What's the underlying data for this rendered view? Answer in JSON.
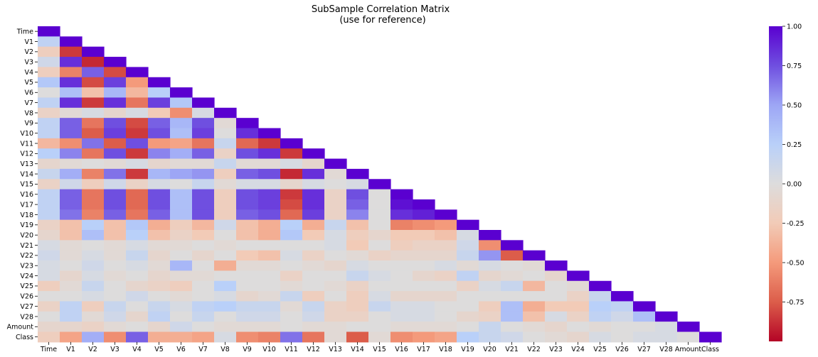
{
  "chart_data": {
    "type": "heatmap",
    "title": "SubSample Correlation Matrix",
    "subtitle": "(use for reference)",
    "variables": [
      "Time",
      "V1",
      "V2",
      "V3",
      "V4",
      "V5",
      "V6",
      "V7",
      "V8",
      "V9",
      "V10",
      "V11",
      "V12",
      "V13",
      "V14",
      "V15",
      "V16",
      "V17",
      "V18",
      "V19",
      "V20",
      "V21",
      "V22",
      "V23",
      "V24",
      "V25",
      "V26",
      "V27",
      "V28",
      "Amount",
      "Class"
    ],
    "mask": "upper-triangle",
    "colormap": "coolwarm_r",
    "colorbar": {
      "min": -1.0,
      "max": 1.0,
      "ticks": [
        "-0.75",
        "-0.50",
        "-0.25",
        "0.00",
        "0.25",
        "0.50",
        "0.75",
        "1.00"
      ]
    },
    "matrix_lower": [
      [
        1
      ],
      [
        0.2,
        1
      ],
      [
        -0.2,
        -0.85,
        1
      ],
      [
        0.1,
        0.85,
        -0.9,
        1
      ],
      [
        -0.2,
        -0.6,
        0.7,
        -0.8,
        1
      ],
      [
        0.3,
        0.85,
        -0.8,
        0.8,
        -0.5,
        1
      ],
      [
        0.0,
        0.35,
        -0.3,
        0.4,
        -0.35,
        0.25,
        1
      ],
      [
        0.2,
        0.85,
        -0.85,
        0.85,
        -0.65,
        0.8,
        0.3,
        1
      ],
      [
        -0.15,
        -0.05,
        0.05,
        -0.1,
        0.05,
        -0.25,
        -0.55,
        0.05,
        1
      ],
      [
        0.2,
        0.7,
        -0.65,
        0.75,
        -0.8,
        0.7,
        0.4,
        0.75,
        -0.05,
        1
      ],
      [
        0.2,
        0.7,
        -0.75,
        0.8,
        -0.85,
        0.75,
        0.35,
        0.8,
        0.0,
        0.85,
        1
      ],
      [
        -0.35,
        -0.55,
        0.65,
        -0.75,
        0.75,
        -0.5,
        -0.45,
        -0.65,
        0.15,
        -0.7,
        -0.85,
        1
      ],
      [
        0.25,
        0.6,
        -0.65,
        0.75,
        -0.85,
        0.6,
        0.45,
        0.7,
        -0.15,
        0.75,
        0.85,
        -0.85,
        1
      ],
      [
        -0.1,
        -0.05,
        0.0,
        -0.05,
        0.05,
        -0.1,
        -0.05,
        -0.05,
        0.15,
        -0.05,
        -0.05,
        0.05,
        -0.1,
        1
      ],
      [
        0.15,
        0.45,
        -0.6,
        0.65,
        -0.85,
        0.4,
        0.5,
        0.55,
        -0.2,
        0.7,
        0.75,
        -0.9,
        0.85,
        -0.05,
        1
      ],
      [
        -0.15,
        0.1,
        -0.2,
        0.1,
        -0.15,
        0.05,
        0.0,
        0.15,
        -0.05,
        0.05,
        0.05,
        -0.1,
        0.05,
        0.0,
        0.05,
        1
      ],
      [
        0.2,
        0.7,
        -0.65,
        0.75,
        -0.7,
        0.75,
        0.35,
        0.75,
        -0.2,
        0.75,
        0.8,
        -0.85,
        0.85,
        -0.15,
        0.75,
        0.0,
        1
      ],
      [
        0.2,
        0.7,
        -0.65,
        0.75,
        -0.7,
        0.75,
        0.35,
        0.75,
        -0.2,
        0.75,
        0.8,
        -0.8,
        0.85,
        -0.15,
        0.7,
        0.0,
        0.95,
        1
      ],
      [
        0.2,
        0.65,
        -0.6,
        0.7,
        -0.65,
        0.7,
        0.35,
        0.75,
        -0.2,
        0.7,
        0.75,
        -0.7,
        0.8,
        -0.15,
        0.6,
        0.0,
        0.85,
        0.9,
        1
      ],
      [
        -0.15,
        -0.3,
        0.25,
        -0.3,
        0.3,
        -0.4,
        -0.2,
        -0.35,
        0.1,
        -0.3,
        -0.4,
        0.25,
        -0.4,
        0.15,
        -0.3,
        0.0,
        -0.6,
        -0.55,
        -0.5,
        1
      ],
      [
        -0.1,
        -0.3,
        0.35,
        -0.3,
        0.25,
        -0.3,
        -0.15,
        -0.25,
        0.0,
        -0.3,
        -0.4,
        0.3,
        -0.25,
        0.05,
        -0.2,
        -0.1,
        -0.25,
        -0.25,
        -0.3,
        0.05,
        1
      ],
      [
        0.05,
        -0.05,
        0.0,
        -0.05,
        0.05,
        -0.05,
        -0.05,
        0.0,
        -0.05,
        0.0,
        0.0,
        0.0,
        0.0,
        0.05,
        -0.25,
        0.0,
        -0.2,
        -0.15,
        -0.15,
        0.1,
        -0.55,
        1
      ],
      [
        0.1,
        -0.05,
        0.05,
        -0.05,
        0.15,
        -0.1,
        0.0,
        -0.1,
        0.0,
        -0.25,
        -0.3,
        0.05,
        -0.15,
        0.0,
        -0.05,
        -0.15,
        -0.1,
        -0.1,
        -0.1,
        0.15,
        0.55,
        -0.75,
        1
      ],
      [
        0.05,
        0.0,
        0.1,
        0.0,
        0.05,
        -0.05,
        0.4,
        0.0,
        -0.4,
        -0.05,
        -0.05,
        0.0,
        -0.05,
        -0.1,
        0.05,
        0.0,
        0.0,
        0.0,
        0.05,
        -0.05,
        0.05,
        0.0,
        -0.05,
        1
      ],
      [
        0.05,
        -0.1,
        0.05,
        -0.05,
        0.0,
        -0.1,
        -0.05,
        -0.05,
        0.0,
        0.0,
        0.0,
        -0.15,
        0.0,
        0.0,
        0.15,
        0.05,
        0.0,
        -0.1,
        -0.15,
        0.2,
        -0.1,
        -0.05,
        0.0,
        -0.1,
        1
      ],
      [
        -0.2,
        -0.05,
        0.15,
        0.0,
        -0.1,
        -0.15,
        -0.2,
        0.0,
        0.25,
        0.0,
        0.0,
        -0.05,
        0.0,
        -0.05,
        -0.15,
        0.0,
        0.0,
        0.0,
        0.0,
        -0.15,
        0.05,
        0.15,
        -0.35,
        0.0,
        -0.05,
        1
      ],
      [
        0.0,
        0.0,
        0.05,
        0.0,
        0.1,
        0.0,
        -0.05,
        0.0,
        0.05,
        -0.1,
        -0.05,
        0.15,
        -0.2,
        0.0,
        -0.2,
        0.05,
        -0.1,
        -0.1,
        -0.1,
        0.0,
        0.0,
        0.0,
        0.0,
        0.0,
        -0.15,
        0.15,
        1
      ],
      [
        -0.15,
        0.2,
        -0.2,
        0.15,
        0.0,
        0.15,
        0.05,
        0.2,
        0.25,
        0.15,
        0.15,
        -0.05,
        0.15,
        -0.15,
        -0.2,
        0.15,
        0.05,
        0.05,
        0.0,
        0.0,
        -0.2,
        0.35,
        -0.4,
        -0.25,
        -0.25,
        0.25,
        0.2,
        1
      ],
      [
        0.0,
        0.2,
        -0.05,
        0.1,
        -0.1,
        0.2,
        0.0,
        0.15,
        0.0,
        0.1,
        0.1,
        0.0,
        0.1,
        -0.15,
        -0.15,
        0.0,
        0.05,
        0.05,
        0.0,
        -0.1,
        -0.15,
        0.35,
        -0.3,
        0.05,
        -0.15,
        0.2,
        0.1,
        0.35,
        1
      ],
      [
        -0.1,
        -0.1,
        -0.15,
        -0.05,
        0.0,
        -0.1,
        0.1,
        0.0,
        -0.05,
        -0.05,
        -0.05,
        0.0,
        -0.05,
        -0.05,
        0.0,
        0.0,
        -0.05,
        -0.05,
        -0.05,
        0.0,
        0.15,
        0.0,
        -0.05,
        -0.1,
        0.0,
        -0.05,
        0.0,
        0.0,
        0.05,
        1
      ],
      [
        -0.2,
        -0.45,
        0.45,
        -0.55,
        0.7,
        -0.4,
        -0.4,
        -0.45,
        0.05,
        -0.55,
        -0.6,
        0.65,
        -0.65,
        -0.05,
        -0.75,
        -0.05,
        -0.55,
        -0.5,
        -0.45,
        0.25,
        0.15,
        0.1,
        0.0,
        -0.05,
        -0.1,
        0.05,
        0.0,
        0.05,
        0.05,
        0.0,
        1
      ]
    ]
  }
}
